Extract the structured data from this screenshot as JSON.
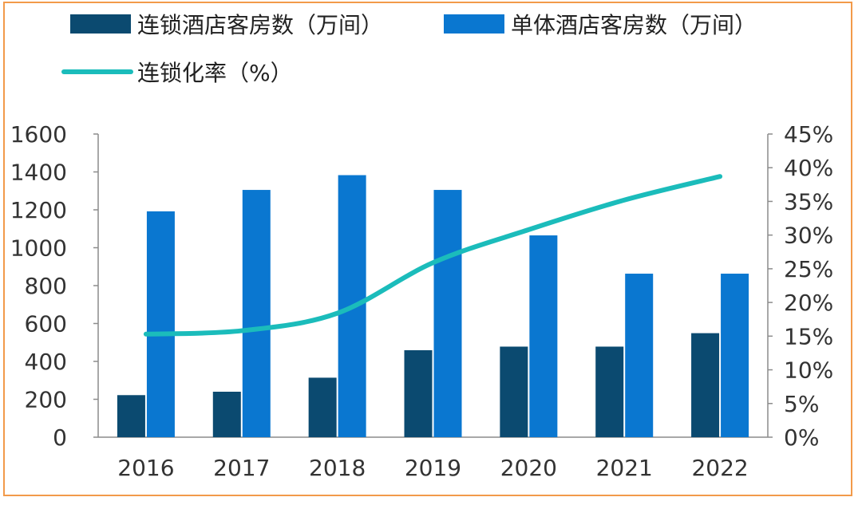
{
  "chart_data": {
    "type": "bar",
    "title": "",
    "categories": [
      "2016",
      "2017",
      "2018",
      "2019",
      "2020",
      "2021",
      "2022"
    ],
    "series": [
      {
        "name": "连锁酒店客房数（万间）",
        "kind": "bar",
        "axis": "left",
        "color": "#0B4A70",
        "values": [
          222,
          240,
          314,
          459,
          478,
          478,
          549
        ]
      },
      {
        "name": "单体酒店客房数（万间）",
        "kind": "bar",
        "axis": "left",
        "color": "#0A77D0",
        "values": [
          1192,
          1305,
          1383,
          1305,
          1065,
          863,
          863
        ]
      },
      {
        "name": "连锁化率（%）",
        "kind": "line",
        "axis": "right",
        "color": "#1BBCBB",
        "values": [
          15.3,
          15.8,
          18.4,
          25.9,
          30.8,
          35.2,
          38.7
        ]
      }
    ],
    "y_left": {
      "min": 0,
      "max": 1600,
      "ticks": [
        "0",
        "200",
        "400",
        "600",
        "800",
        "1000",
        "1200",
        "1400",
        "1600"
      ]
    },
    "y_right": {
      "min": 0,
      "max": 45,
      "ticks": [
        "0%",
        "5%",
        "10%",
        "15%",
        "20%",
        "25%",
        "30%",
        "35%",
        "40%",
        "45%"
      ]
    },
    "legend": "top",
    "grid": false
  }
}
